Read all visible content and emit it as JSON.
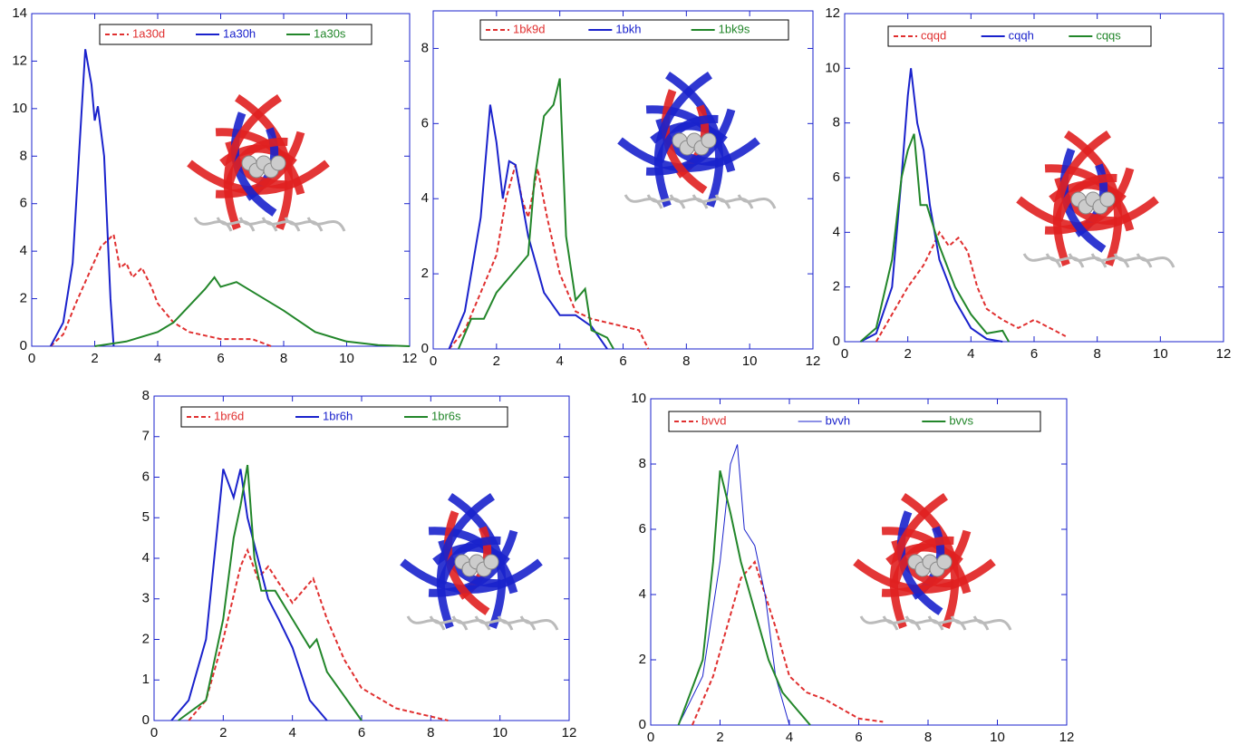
{
  "chart_data": [
    {
      "type": "line",
      "xlim": [
        0,
        12
      ],
      "xticks": [
        0,
        2,
        4,
        6,
        8,
        10,
        12
      ],
      "ylim": [
        0,
        14
      ],
      "yticks": [
        0,
        2,
        4,
        6,
        8,
        10,
        12,
        14
      ],
      "series": [
        {
          "name": "1a30d",
          "color": "#e03030",
          "style": "dashed",
          "x": [
            0.6,
            1,
            1.4,
            1.8,
            2.2,
            2.6,
            2.8,
            3,
            3.2,
            3.5,
            3.8,
            4,
            4.5,
            5,
            6,
            7,
            7.6
          ],
          "values": [
            0,
            0.5,
            1.8,
            3,
            4.2,
            4.7,
            3.3,
            3.5,
            2.9,
            3.3,
            2.5,
            1.8,
            1,
            0.6,
            0.3,
            0.3,
            0
          ]
        },
        {
          "name": "1a30h",
          "color": "#1a22cc",
          "style": "solid",
          "x": [
            0.6,
            1,
            1.3,
            1.5,
            1.7,
            1.9,
            2,
            2.1,
            2.3,
            2.5,
            2.6
          ],
          "values": [
            0,
            1,
            3.5,
            8,
            12.5,
            11,
            9.5,
            10.1,
            8,
            2,
            0
          ]
        },
        {
          "name": "1a30s",
          "color": "#22862a",
          "style": "solid",
          "x": [
            2,
            3,
            4,
            4.5,
            5,
            5.5,
            5.8,
            6,
            6.5,
            7,
            8,
            9,
            10,
            11,
            12
          ],
          "values": [
            0,
            0.2,
            0.6,
            1,
            1.7,
            2.4,
            2.9,
            2.5,
            2.7,
            2.3,
            1.5,
            0.6,
            0.2,
            0.05,
            0
          ]
        }
      ]
    },
    {
      "type": "line",
      "xlim": [
        0,
        12
      ],
      "xticks": [
        0,
        2,
        4,
        6,
        8,
        10,
        12
      ],
      "ylim": [
        0,
        9
      ],
      "yticks": [
        0,
        2,
        4,
        6,
        8
      ],
      "series": [
        {
          "name": "1bk9d",
          "color": "#e03030",
          "style": "dashed",
          "x": [
            0.5,
            1,
            1.5,
            2,
            2.3,
            2.6,
            2.8,
            3,
            3.3,
            3.6,
            4,
            4.5,
            5,
            6,
            6.5,
            6.8
          ],
          "values": [
            0,
            0.5,
            1.5,
            2.5,
            4,
            4.9,
            4,
            3.5,
            4.8,
            3.5,
            2,
            1,
            0.8,
            0.6,
            0.5,
            0
          ]
        },
        {
          "name": "1bkh",
          "color": "#1a22cc",
          "style": "solid",
          "x": [
            0.5,
            1,
            1.5,
            1.8,
            2,
            2.2,
            2.4,
            2.6,
            3,
            3.5,
            4,
            4.5,
            5,
            5.5
          ],
          "values": [
            0,
            1,
            3.5,
            6.5,
            5.5,
            4,
            5,
            4.9,
            3,
            1.5,
            0.9,
            0.9,
            0.6,
            0
          ]
        },
        {
          "name": "1bk9s",
          "color": "#22862a",
          "style": "solid",
          "x": [
            0.8,
            1.2,
            1.6,
            2,
            2.5,
            3,
            3.2,
            3.5,
            3.8,
            4,
            4.2,
            4.5,
            4.8,
            5,
            5.5,
            5.7
          ],
          "values": [
            0,
            0.8,
            0.8,
            1.5,
            2,
            2.5,
            4.5,
            6.2,
            6.5,
            7.2,
            3,
            1.3,
            1.6,
            0.5,
            0.3,
            0
          ]
        }
      ]
    },
    {
      "type": "line",
      "xlim": [
        0,
        12
      ],
      "xticks": [
        0,
        2,
        4,
        6,
        8,
        10,
        12
      ],
      "ylim": [
        0,
        12
      ],
      "yticks": [
        0,
        2,
        4,
        6,
        8,
        10,
        12
      ],
      "series": [
        {
          "name": "cqqd",
          "color": "#e03030",
          "style": "dashed",
          "x": [
            1,
            1.5,
            2,
            2.5,
            2.8,
            3,
            3.3,
            3.6,
            3.9,
            4.2,
            4.5,
            5,
            5.5,
            6,
            6.5,
            7
          ],
          "values": [
            0,
            1,
            2,
            2.8,
            3.5,
            4,
            3.5,
            3.8,
            3.3,
            2,
            1.2,
            0.8,
            0.5,
            0.8,
            0.5,
            0.2
          ]
        },
        {
          "name": "cqqh",
          "color": "#1a22cc",
          "style": "solid",
          "x": [
            0.5,
            1,
            1.5,
            1.8,
            2,
            2.1,
            2.3,
            2.5,
            2.7,
            3,
            3.5,
            4,
            4.5,
            5
          ],
          "values": [
            0,
            0.3,
            2,
            6,
            9,
            10,
            8,
            7,
            5,
            3,
            1.5,
            0.5,
            0.1,
            0
          ]
        },
        {
          "name": "cqqs",
          "color": "#22862a",
          "style": "solid",
          "x": [
            0.5,
            1,
            1.5,
            1.8,
            2,
            2.2,
            2.4,
            2.6,
            3,
            3.5,
            4,
            4.5,
            5,
            5.2
          ],
          "values": [
            0,
            0.5,
            3,
            6,
            7,
            7.6,
            5,
            5,
            3.5,
            2,
            1,
            0.3,
            0.4,
            0
          ]
        }
      ]
    },
    {
      "type": "line",
      "xlim": [
        0,
        12
      ],
      "xticks": [
        0,
        2,
        4,
        6,
        8,
        10,
        12
      ],
      "ylim": [
        0,
        8
      ],
      "yticks": [
        0,
        1,
        2,
        3,
        4,
        5,
        6,
        7,
        8
      ],
      "series": [
        {
          "name": "1br6d",
          "color": "#e03030",
          "style": "dashed",
          "x": [
            1,
            1.5,
            2,
            2.5,
            2.7,
            3,
            3.3,
            3.6,
            4,
            4.3,
            4.6,
            5,
            5.5,
            6,
            7,
            8,
            8.5
          ],
          "values": [
            0,
            0.5,
            2,
            3.8,
            4.2,
            3.5,
            3.8,
            3.4,
            2.9,
            3.2,
            3.5,
            2.5,
            1.5,
            0.8,
            0.3,
            0.1,
            0
          ]
        },
        {
          "name": "1br6h",
          "color": "#1a22cc",
          "style": "solid",
          "x": [
            0.5,
            1,
            1.5,
            1.8,
            2,
            2.3,
            2.5,
            2.7,
            3,
            3.3,
            3.6,
            4,
            4.5,
            5
          ],
          "values": [
            0,
            0.5,
            2,
            4.5,
            6.2,
            5.5,
            6.2,
            5,
            4,
            3,
            2.5,
            1.8,
            0.5,
            0
          ]
        },
        {
          "name": "1br6s",
          "color": "#22862a",
          "style": "solid",
          "x": [
            0.7,
            1.5,
            2,
            2.3,
            2.5,
            2.7,
            2.9,
            3.1,
            3.5,
            4,
            4.5,
            4.7,
            5,
            5.5,
            6
          ],
          "values": [
            0,
            0.5,
            2.5,
            4.5,
            5.3,
            6.3,
            4,
            3.2,
            3.2,
            2.5,
            1.8,
            2,
            1.2,
            0.6,
            0
          ]
        }
      ]
    },
    {
      "type": "line",
      "xlim": [
        0,
        12
      ],
      "xticks": [
        0,
        2,
        4,
        6,
        8,
        10,
        12
      ],
      "ylim": [
        0,
        10
      ],
      "yticks": [
        0,
        2,
        4,
        6,
        8,
        10
      ],
      "series": [
        {
          "name": "bvvd",
          "color": "#e03030",
          "style": "dashed",
          "x": [
            1.2,
            1.8,
            2.2,
            2.6,
            3,
            3.3,
            3.6,
            4,
            4.5,
            5,
            5.5,
            6,
            6.7
          ],
          "values": [
            0,
            1.5,
            3,
            4.5,
            5,
            4,
            3,
            1.5,
            1,
            0.8,
            0.5,
            0.2,
            0.1
          ]
        },
        {
          "name": "bvvh",
          "color": "#1a22cc",
          "style": "thin",
          "x": [
            0.8,
            1.5,
            2,
            2.3,
            2.5,
            2.7,
            3,
            3.3,
            3.6,
            4
          ],
          "values": [
            0,
            1.5,
            5,
            8,
            8.6,
            6,
            5.5,
            4,
            1.5,
            0
          ]
        },
        {
          "name": "bvvs",
          "color": "#22862a",
          "style": "solid",
          "x": [
            0.8,
            1.5,
            1.8,
            2,
            2.3,
            2.6,
            3,
            3.4,
            3.8,
            4.2,
            4.6
          ],
          "values": [
            0,
            2,
            5,
            7.8,
            6.5,
            5,
            3.5,
            2,
            1,
            0.5,
            0
          ]
        }
      ]
    }
  ]
}
